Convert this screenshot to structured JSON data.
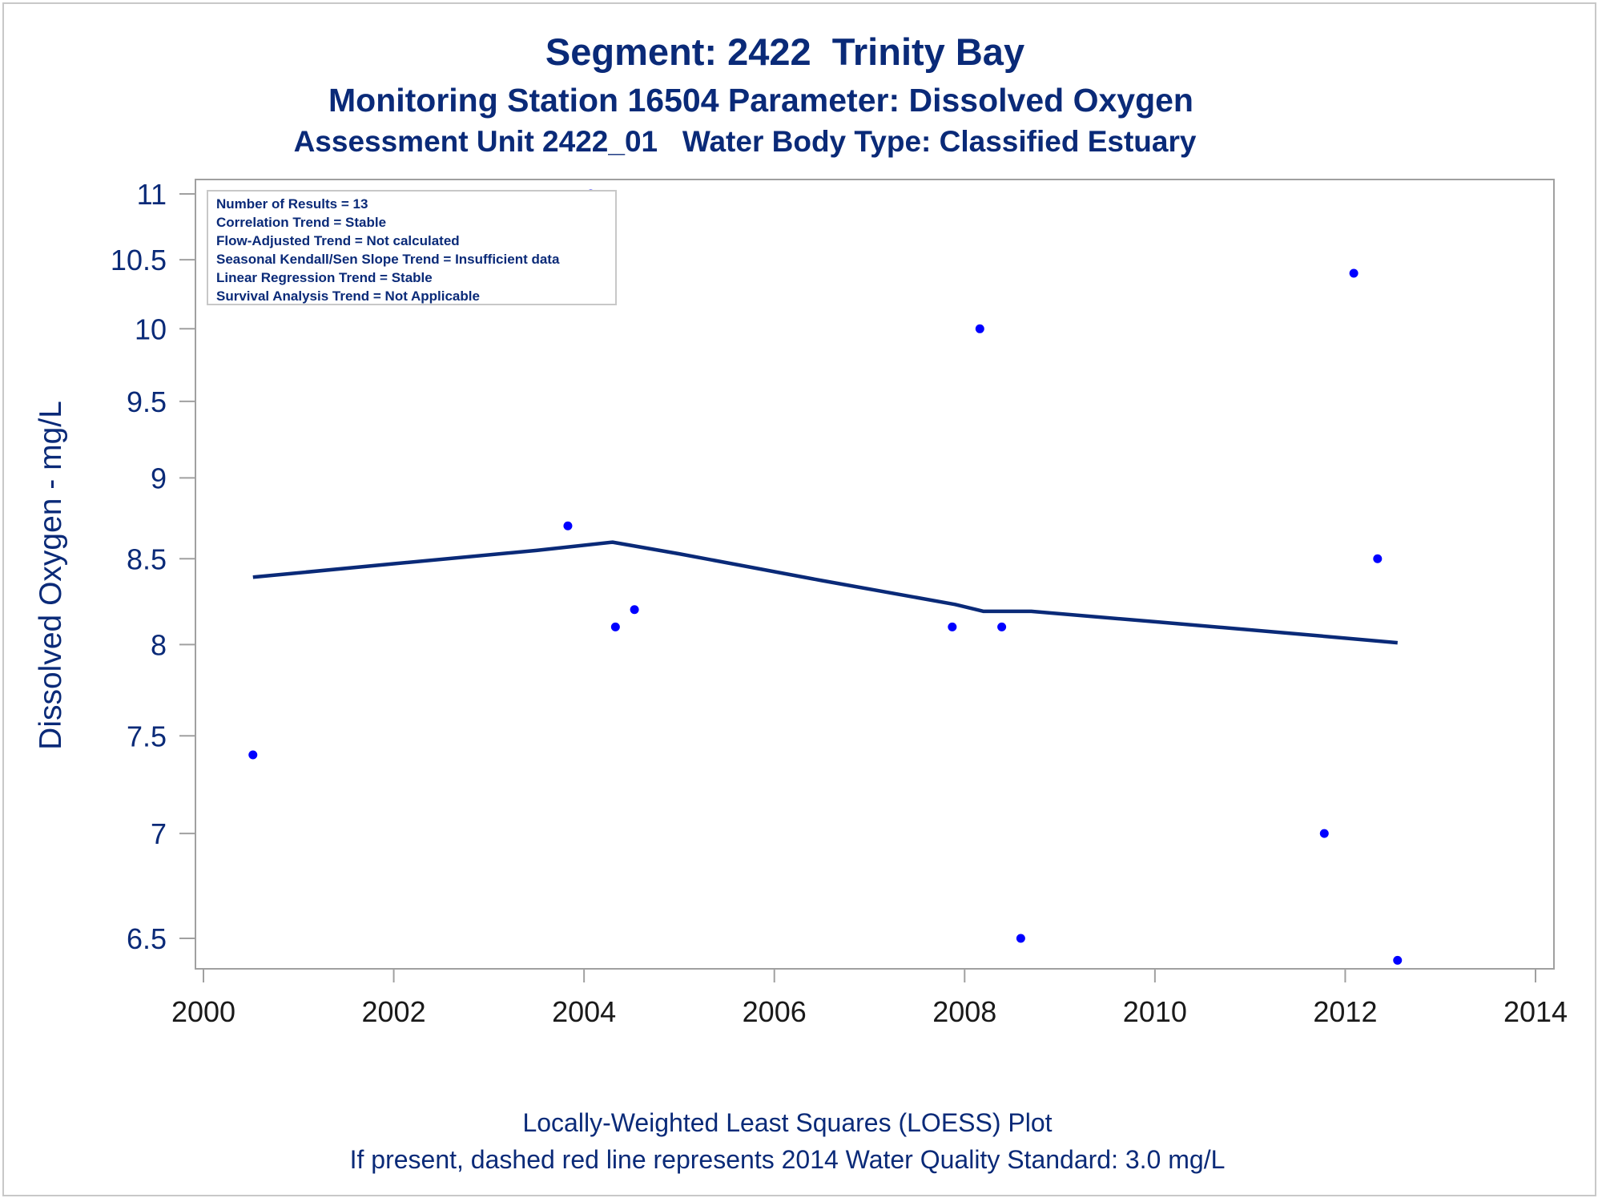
{
  "titles": {
    "line1": "Segment: 2422  Trinity Bay",
    "line2": "Monitoring Station 16504 Parameter: Dissolved Oxygen",
    "line3": "Assessment Unit 2422_01   Water Body Type: Classified Estuary"
  },
  "footnotes": {
    "line1": "Locally-Weighted Least Squares (LOESS) Plot",
    "line2": "If present, dashed red line represents 2014 Water Quality Standard: 3.0 mg/L"
  },
  "stats": [
    "Number of Results = 13",
    "Correlation Trend = Stable",
    "Flow-Adjusted Trend = Not calculated",
    "Seasonal Kendall/Sen Slope Trend = Insufficient data",
    "Linear Regression Trend = Stable",
    "Survival Analysis Trend = Not Applicable"
  ],
  "colors": {
    "text": "#0a2a78",
    "points": "#0000ff",
    "loess": "#0a2a78",
    "axis": "#a0a0a0"
  },
  "chart_data": {
    "type": "scatter",
    "title": "Segment: 2422  Trinity Bay",
    "ylabel": "Dissolved Oxygen - mg/L",
    "xlabel": "",
    "y_scale": "log",
    "xlim": [
      2000,
      2014
    ],
    "ylim": [
      6.4,
      11
    ],
    "x_ticks": [
      2000,
      2002,
      2004,
      2006,
      2008,
      2010,
      2012,
      2014
    ],
    "x_tick_labels": [
      "2000",
      "2002",
      "2004",
      "2006",
      "2008",
      "2010",
      "2012",
      "2014"
    ],
    "y_ticks": [
      6.5,
      7,
      7.5,
      8,
      8.5,
      9,
      9.5,
      10,
      10.5,
      11
    ],
    "y_tick_labels": [
      "6.5",
      "7",
      "7.5",
      "8",
      "8.5",
      "9",
      "9.5",
      "10",
      "10.5",
      "11"
    ],
    "series": [
      {
        "type": "scatter",
        "points": [
          {
            "x": 2000.52,
            "y": 7.4
          },
          {
            "x": 2003.83,
            "y": 8.7
          },
          {
            "x": 2004.07,
            "y": 11.0
          },
          {
            "x": 2004.33,
            "y": 8.1
          },
          {
            "x": 2004.53,
            "y": 8.2
          },
          {
            "x": 2007.87,
            "y": 8.1
          },
          {
            "x": 2008.16,
            "y": 10.0
          },
          {
            "x": 2008.39,
            "y": 8.1
          },
          {
            "x": 2008.59,
            "y": 6.5
          },
          {
            "x": 2011.78,
            "y": 7.0
          },
          {
            "x": 2012.09,
            "y": 10.4
          },
          {
            "x": 2012.34,
            "y": 8.5
          },
          {
            "x": 2012.55,
            "y": 6.4
          }
        ]
      },
      {
        "type": "line",
        "points": [
          {
            "x": 2000.52,
            "y": 8.39
          },
          {
            "x": 2002.0,
            "y": 8.47
          },
          {
            "x": 2003.5,
            "y": 8.55
          },
          {
            "x": 2004.3,
            "y": 8.6
          },
          {
            "x": 2005.0,
            "y": 8.53
          },
          {
            "x": 2006.5,
            "y": 8.37
          },
          {
            "x": 2007.9,
            "y": 8.23
          },
          {
            "x": 2008.2,
            "y": 8.19
          },
          {
            "x": 2008.7,
            "y": 8.19
          },
          {
            "x": 2010.0,
            "y": 8.13
          },
          {
            "x": 2011.5,
            "y": 8.06
          },
          {
            "x": 2012.55,
            "y": 8.01
          }
        ]
      }
    ]
  }
}
